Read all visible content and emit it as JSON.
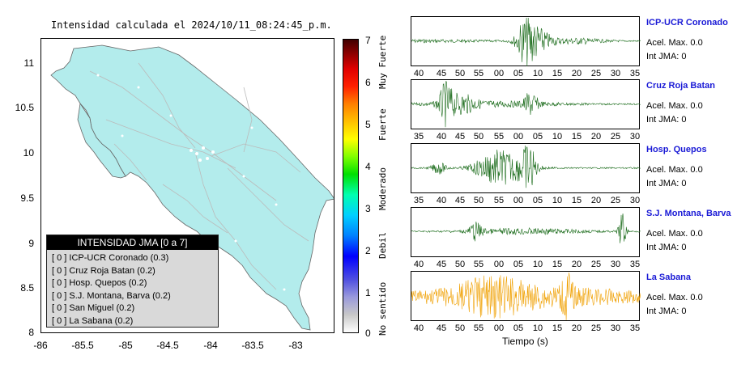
{
  "map": {
    "title": "Intensidad calculada el 2024/10/11_08:24:45_p.m.",
    "y_ticks": [
      "11",
      "10.5",
      "10",
      "9.5",
      "9",
      "8.5",
      "8"
    ],
    "x_ticks": [
      "-86",
      "-85.5",
      "-85",
      "-84.5",
      "-84",
      "-83.5",
      "-83"
    ],
    "land_color": "#b3ecec"
  },
  "legend": {
    "title": "INTENSIDAD JMA [0 a 7]",
    "rows": [
      "[ 0 ]  ICP-UCR Coronado (0.3)",
      "[ 0 ]  Cruz Roja Batan (0.2)",
      "[ 0 ]  Hosp. Quepos (0.2)",
      "[ 0 ]  S.J. Montana, Barva (0.2)",
      "[ 0 ]  San Miguel (0.2)",
      "[ 0 ]  La Sabana (0.2)"
    ]
  },
  "colorbar": {
    "ticks": [
      "7",
      "6",
      "5",
      "4",
      "3",
      "2",
      "1",
      "0"
    ],
    "labels": [
      "Muy Fuerte",
      "Fuerte",
      "Moderado",
      "Debil",
      "No sentido"
    ]
  },
  "traces": [
    {
      "station": "ICP-UCR Coronado",
      "acel": "Acel. Max. 0.0",
      "jma": "Int JMA: 0",
      "color": "#1a6b1a",
      "ticks": [
        "40",
        "45",
        "50",
        "55",
        "00",
        "05",
        "10",
        "15",
        "20",
        "25",
        "30",
        "35"
      ]
    },
    {
      "station": "Cruz Roja Batan",
      "acel": "Acel. Max. 0.0",
      "jma": "Int JMA: 0",
      "color": "#1a6b1a",
      "ticks": [
        "35",
        "40",
        "45",
        "50",
        "55",
        "00",
        "05",
        "10",
        "15",
        "20",
        "25",
        "30"
      ]
    },
    {
      "station": "Hosp. Quepos",
      "acel": "Acel. Max. 0.0",
      "jma": "Int JMA: 0",
      "color": "#1a6b1a",
      "ticks": [
        "35",
        "40",
        "45",
        "50",
        "55",
        "00",
        "05",
        "10",
        "15",
        "20",
        "25",
        "30"
      ]
    },
    {
      "station": "S.J. Montana, Barva",
      "acel": "Acel. Max. 0.0",
      "jma": "Int JMA: 0",
      "color": "#1a6b1a",
      "ticks": [
        "40",
        "45",
        "50",
        "55",
        "00",
        "05",
        "10",
        "15",
        "20",
        "25",
        "30",
        "35"
      ]
    },
    {
      "station": "La Sabana",
      "acel": "Acel. Max. 0.0",
      "jma": "Int JMA: 0",
      "color": "#f0a000",
      "ticks": [
        "40",
        "45",
        "50",
        "55",
        "00",
        "05",
        "10",
        "15",
        "20",
        "25",
        "30",
        "35"
      ]
    }
  ],
  "xaxis_label": "Tiempo (s)"
}
